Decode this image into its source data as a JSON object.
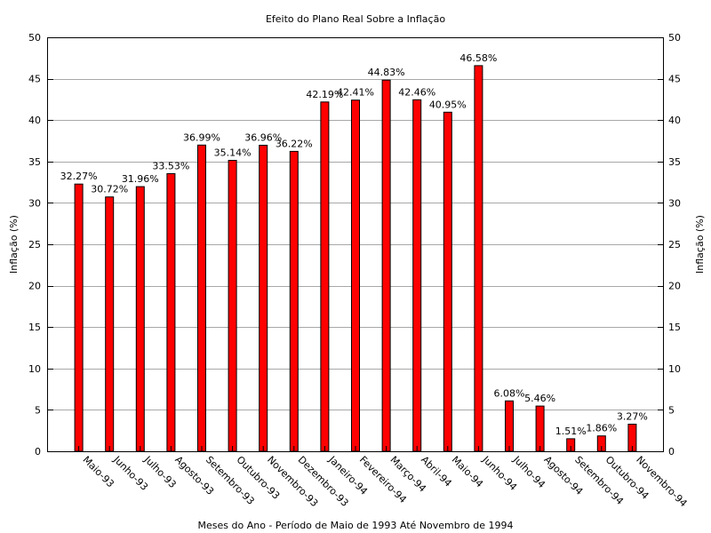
{
  "chart_data": {
    "type": "bar",
    "title": "Efeito do Plano Real Sobre a Inflação",
    "xlabel": "Meses do Ano - Período de Maio de 1993 Até Novembro de 1994",
    "ylabel": "Inflação (%)",
    "ylabel_right": "Inflação (%)",
    "ylim": [
      0,
      50
    ],
    "yticks": [
      "0",
      "5",
      "10",
      "15",
      "20",
      "25",
      "30",
      "35",
      "40",
      "45",
      "50"
    ],
    "grid": true,
    "legend": "none",
    "color": "#ff0000",
    "categories": [
      "Maio-93",
      "Junho-93",
      "Julho-93",
      "Agosto-93",
      "Setembro-93",
      "Outubro-93",
      "Novembro-93",
      "Dezembro-93",
      "Janeiro-94",
      "Fevereiro-94",
      "Março-94",
      "Abril-94",
      "Maio-94",
      "Junho-94",
      "Julho-94",
      "Agosto-94",
      "Setembro-94",
      "Outubro-94",
      "Novembro-94"
    ],
    "values": [
      32.27,
      30.72,
      31.96,
      33.53,
      36.99,
      35.14,
      36.96,
      36.22,
      42.19,
      42.41,
      44.83,
      42.46,
      40.95,
      46.58,
      6.08,
      5.46,
      1.51,
      1.86,
      3.27
    ],
    "data_labels": [
      "32.27%",
      "30.72%",
      "31.96%",
      "33.53%",
      "36.99%",
      "35.14%",
      "36.96%",
      "36.22%",
      "42.19%",
      "42.41%",
      "44.83%",
      "42.46%",
      "40.95%",
      "46.58%",
      "6.08%",
      "5.46%",
      "1.51%",
      "1.86%",
      "3.27%"
    ]
  }
}
